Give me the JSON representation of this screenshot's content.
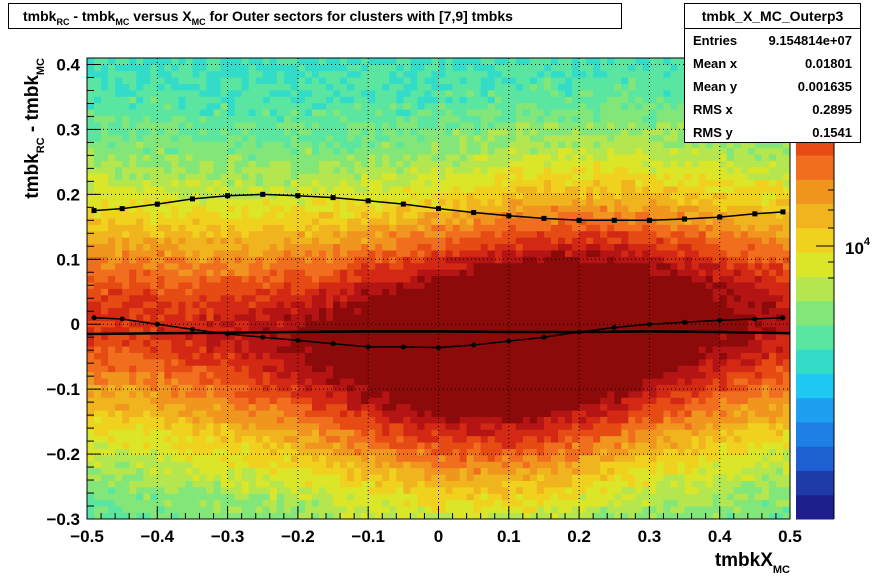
{
  "title": {
    "parts": [
      {
        "t": "tmbk",
        "sub": false
      },
      {
        "t": "RC",
        "sub": true
      },
      {
        "t": " - tmbk",
        "sub": false
      },
      {
        "t": "MC",
        "sub": true
      },
      {
        "t": " versus X",
        "sub": false
      },
      {
        "t": "MC",
        "sub": true
      },
      {
        "t": " for Outer sectors for clusters with [7,9] tmbks",
        "sub": false
      }
    ]
  },
  "stats": {
    "name": "tmbk_X_MC_Outerp3",
    "rows": [
      {
        "label": "Entries",
        "value": "9.154814e+07"
      },
      {
        "label": "Mean x",
        "value": "0.01801"
      },
      {
        "label": "Mean y",
        "value": "0.001635"
      },
      {
        "label": "RMS x",
        "value": "0.2895"
      },
      {
        "label": "RMS y",
        "value": "0.1541"
      }
    ]
  },
  "chart_data": {
    "type": "heatmap",
    "title": "tmbk_RC - tmbk_MC versus X_MC for Outer sectors for clusters with [7,9] tmbks",
    "xlabel": "tmbkX_MC",
    "ylabel": "tmbk_RC - tmbk_MC",
    "xlim": [
      -0.5,
      0.5
    ],
    "ylim": [
      -0.3,
      0.41
    ],
    "x_ticks": [
      "−0.5",
      "−0.4",
      "−0.3",
      "−0.2",
      "−0.1",
      "0",
      "0.1",
      "0.2",
      "0.3",
      "0.4",
      "0.5"
    ],
    "y_ticks": [
      "−0.3",
      "−0.2",
      "−0.1",
      "0",
      "0.1",
      "0.2",
      "0.3",
      "0.4"
    ],
    "grid": true,
    "colorbar": {
      "label": "10",
      "exponent": "4",
      "scale": "log"
    },
    "palette": [
      "#1e1e8c",
      "#1e3ca8",
      "#1e5fd2",
      "#1e7fe6",
      "#1e9ff0",
      "#1ec8f0",
      "#32dcc8",
      "#5ae6a0",
      "#82e678",
      "#b4e650",
      "#dce628",
      "#f0d21e",
      "#f0b41e",
      "#f0961e",
      "#f06e1e",
      "#e64b14",
      "#d22814",
      "#b41414",
      "#8c0a0a"
    ],
    "profile_upper": {
      "x": [
        -0.49,
        -0.45,
        -0.4,
        -0.35,
        -0.3,
        -0.25,
        -0.2,
        -0.15,
        -0.1,
        -0.05,
        0.0,
        0.05,
        0.1,
        0.15,
        0.2,
        0.25,
        0.3,
        0.35,
        0.4,
        0.45,
        0.49
      ],
      "y": [
        0.175,
        0.178,
        0.185,
        0.193,
        0.198,
        0.2,
        0.198,
        0.195,
        0.19,
        0.185,
        0.178,
        0.172,
        0.167,
        0.163,
        0.16,
        0.16,
        0.16,
        0.162,
        0.165,
        0.17,
        0.173
      ]
    },
    "profile_lower": {
      "x": [
        -0.49,
        -0.45,
        -0.4,
        -0.35,
        -0.3,
        -0.25,
        -0.2,
        -0.15,
        -0.1,
        -0.05,
        0.0,
        0.05,
        0.1,
        0.15,
        0.2,
        0.25,
        0.3,
        0.35,
        0.4,
        0.45,
        0.49
      ],
      "y": [
        0.01,
        0.008,
        0.0,
        -0.008,
        -0.015,
        -0.02,
        -0.025,
        -0.03,
        -0.035,
        -0.035,
        -0.036,
        -0.032,
        -0.026,
        -0.02,
        -0.012,
        -0.005,
        0.0,
        0.003,
        0.006,
        0.008,
        0.01
      ]
    },
    "profile_mean": {
      "x": [
        -0.5,
        -0.4,
        -0.3,
        -0.2,
        -0.1,
        0.0,
        0.1,
        0.2,
        0.3,
        0.4,
        0.5
      ],
      "y": [
        -0.015,
        -0.014,
        -0.013,
        -0.012,
        -0.011,
        -0.011,
        -0.012,
        -0.012,
        -0.011,
        -0.012,
        -0.014
      ]
    }
  }
}
